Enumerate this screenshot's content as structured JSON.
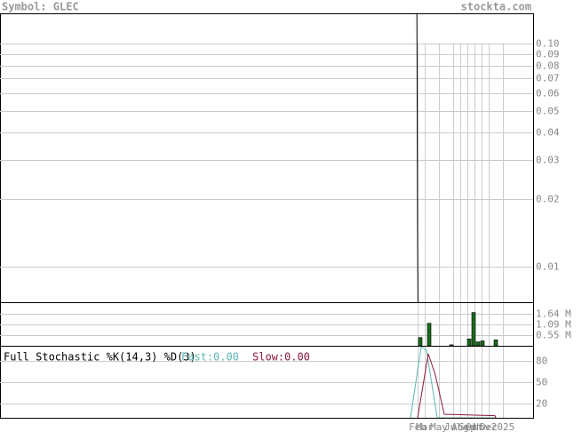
{
  "header": {
    "symbol": "Symbol: GLEC",
    "site": "stockta.com"
  },
  "chart_data": [
    {
      "type": "line",
      "log_scale": true,
      "ylim": [
        0.0069,
        0.137
      ],
      "yticks": [
        {
          "value": 0.1,
          "label": "0.10"
        },
        0.09,
        0.08,
        0.07,
        0.06,
        0.05,
        0.04,
        0.03,
        0.02,
        0.01
      ],
      "xlim": [
        -56.75,
        18.25
      ],
      "grid": true,
      "series": [
        {
          "color": "#000000",
          "x": [
            1.9,
            2.0,
            2.05
          ],
          "values": [
            0.137,
            0.0125,
            0.0069
          ]
        }
      ]
    },
    {
      "type": "bar",
      "ylim": [
        0,
        2180000
      ],
      "yticks": [
        {
          "value": 1640000,
          "label": "1.64 M"
        },
        {
          "value": 1090000,
          "label": "1.09 M"
        },
        {
          "value": 550000,
          "label": "0.55 M"
        }
      ],
      "xlim": [
        -56.75,
        18.25
      ],
      "grid": true,
      "color": "#1a6b1a",
      "x": [
        2.375,
        3.625,
        6.75,
        9.25,
        9.875,
        10.5,
        11.125,
        13
      ],
      "values": [
        420000,
        1150000,
        50000,
        350000,
        1700000,
        200000,
        250000,
        300000
      ]
    },
    {
      "type": "line",
      "title": "Full Stochastic %K(14,3) %D(3)",
      "ylim": [
        0,
        100
      ],
      "yticks": [
        80,
        50,
        20
      ],
      "xlim": [
        -56.75,
        18.25
      ],
      "grid": true,
      "xticks": [
        {
          "value": 2,
          "label": "Feb"
        },
        {
          "value": 3,
          "label": "Mar"
        },
        {
          "value": 5,
          "label": "May"
        },
        {
          "value": 7,
          "label": "Jul"
        },
        {
          "value": 8,
          "label": "Aug"
        },
        {
          "value": 9,
          "label": "Sep"
        },
        {
          "value": 10,
          "label": "Oct"
        },
        {
          "value": 11,
          "label": "Nov"
        },
        {
          "value": 12,
          "label": "Dec"
        },
        {
          "value": 14,
          "label": "2025"
        }
      ],
      "series": [
        {
          "name": "Fast:",
          "value_label": "0.00",
          "color": "#5fb8b0",
          "x": [
            1,
            2.5,
            3.25,
            4.75,
            12.875
          ],
          "values": [
            0,
            100,
            95,
            0,
            0
          ]
        },
        {
          "name": "Slow:",
          "value_label": "0.00",
          "color": "#8b1a3a",
          "x": [
            2,
            3.5,
            4.5,
            5.75,
            12.875,
            13
          ],
          "values": [
            0,
            90,
            60,
            5,
            3,
            0
          ]
        }
      ]
    }
  ]
}
